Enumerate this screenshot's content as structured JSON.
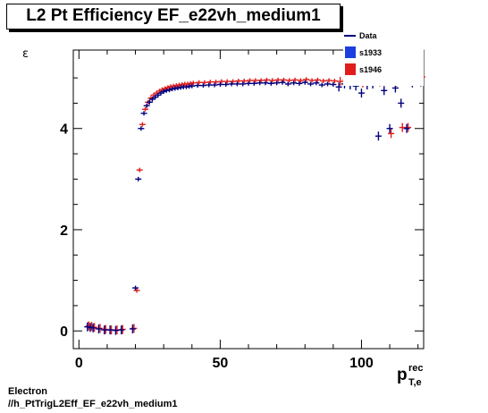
{
  "chart_data": {
    "type": "scatter",
    "title": "L2 Pt Efficiency EF_e22vh_medium1",
    "ylabel": "ε",
    "xlabel_main": "p",
    "xlabel_sup": "rec",
    "xlabel_sub": "T,e",
    "xlim": [
      -2,
      122
    ],
    "ylim": [
      -0.35,
      5.55
    ],
    "xticks": [
      0,
      50,
      100
    ],
    "yticks": [
      0,
      2,
      4
    ],
    "legend_placement": "top-right",
    "legend": [
      {
        "label": "Data",
        "color": "#00007f",
        "marker": "line"
      },
      {
        "label": "s1933",
        "color": "#1c3ee0",
        "marker": "box"
      },
      {
        "label": "s1946",
        "color": "#e01c1c",
        "marker": "box"
      }
    ],
    "series": [
      {
        "name": "Data",
        "color": "#00007f",
        "x": [
          3,
          4,
          5,
          7,
          9,
          11,
          13,
          15,
          19,
          20,
          21,
          22,
          23,
          24,
          25,
          26,
          27,
          28,
          29,
          30,
          31,
          32,
          33,
          34,
          35,
          36,
          37,
          38,
          39,
          40,
          42,
          44,
          46,
          48,
          50,
          52,
          54,
          56,
          58,
          60,
          62,
          64,
          66,
          68,
          70,
          72,
          74,
          76,
          78,
          80,
          82,
          84,
          86,
          88,
          90,
          92,
          94,
          96,
          98,
          100,
          102,
          104,
          106,
          108,
          110,
          112,
          114,
          116,
          118,
          121
        ],
        "y": [
          0.08,
          0.07,
          0.06,
          0.04,
          0.02,
          0.02,
          0.01,
          0.02,
          0.04,
          0.85,
          3.0,
          4.0,
          4.3,
          4.45,
          4.52,
          4.58,
          4.62,
          4.66,
          4.7,
          4.73,
          4.75,
          4.76,
          4.78,
          4.79,
          4.8,
          4.81,
          4.82,
          4.82,
          4.83,
          4.84,
          4.85,
          4.85,
          4.86,
          4.86,
          4.87,
          4.87,
          4.88,
          4.88,
          4.88,
          4.89,
          4.89,
          4.9,
          4.9,
          4.89,
          4.9,
          4.91,
          4.88,
          4.9,
          4.89,
          4.91,
          4.88,
          4.9,
          4.86,
          4.88,
          4.87,
          4.82,
          4.88,
          4.86,
          4.84,
          4.7,
          4.86,
          4.88,
          3.85,
          4.75,
          4.0,
          4.8,
          4.5,
          4.0,
          4.9,
          4.92
        ]
      },
      {
        "name": "s1946",
        "color": "#e01c1c",
        "x": [
          3,
          4,
          5,
          7,
          9,
          11,
          13,
          15,
          19,
          20,
          21,
          22,
          23,
          24,
          25,
          26,
          27,
          28,
          29,
          30,
          31,
          32,
          33,
          34,
          35,
          36,
          37,
          38,
          39,
          40,
          42,
          44,
          46,
          48,
          50,
          52,
          54,
          56,
          58,
          60,
          62,
          64,
          66,
          68,
          70,
          72,
          74,
          76,
          78,
          80,
          82,
          84,
          86,
          88,
          90,
          92,
          94,
          96,
          98,
          100,
          102,
          104,
          106,
          108,
          110,
          112,
          114,
          116,
          118,
          121
        ],
        "y": [
          0.1,
          0.09,
          0.07,
          0.05,
          0.03,
          0.02,
          0.02,
          0.03,
          0.05,
          0.8,
          3.18,
          4.08,
          4.38,
          4.52,
          4.6,
          4.66,
          4.7,
          4.74,
          4.77,
          4.79,
          4.81,
          4.83,
          4.84,
          4.85,
          4.86,
          4.87,
          4.88,
          4.88,
          4.89,
          4.9,
          4.91,
          4.91,
          4.92,
          4.92,
          4.93,
          4.93,
          4.93,
          4.94,
          4.94,
          4.95,
          4.95,
          4.95,
          4.96,
          4.95,
          4.96,
          4.96,
          4.95,
          4.96,
          4.95,
          4.97,
          4.95,
          4.96,
          4.94,
          4.95,
          4.94,
          4.93,
          4.96,
          4.94,
          4.95,
          4.9,
          4.95,
          4.96,
          4.92,
          4.94,
          3.9,
          4.92,
          4.02,
          4.02,
          4.97,
          5.02
        ]
      }
    ]
  },
  "footer": {
    "line1": "Electron",
    "line2": "//h_PtTrigL2Eff_EF_e22vh_medium1"
  }
}
